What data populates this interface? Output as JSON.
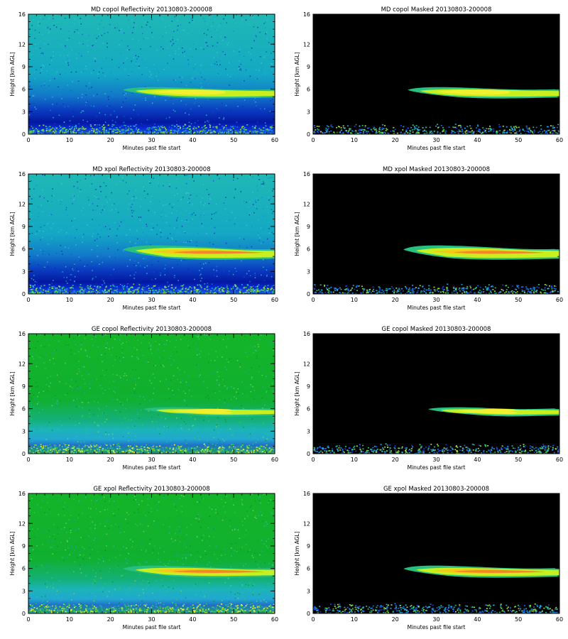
{
  "figure": {
    "xlabel": "Minutes past file start",
    "ylabel": "Height [km AGL]"
  },
  "chart_data": [
    {
      "type": "heatmap",
      "title": "MD copol Reflectivity 20130803-200008",
      "xlabel": "Minutes past file start",
      "ylabel": "Height [km AGL]",
      "xlim": [
        0,
        60
      ],
      "ylim": [
        0,
        16
      ],
      "xticks": [
        0,
        10,
        20,
        30,
        40,
        50,
        60
      ],
      "yticks": [
        0,
        3,
        6,
        9,
        12,
        16
      ],
      "background": "cyan-noise",
      "masked": false,
      "cloud_layer": {
        "start_min": 23,
        "end_min": 60,
        "base_km": 4.8,
        "top_km": 6.3,
        "intensity": "moderate"
      }
    },
    {
      "type": "heatmap",
      "title": "MD copol Masked 20130803-200008",
      "xlabel": "Minutes past file start",
      "ylabel": "Height [km AGL]",
      "xlim": [
        0,
        60
      ],
      "ylim": [
        0,
        16
      ],
      "xticks": [
        0,
        10,
        20,
        30,
        40,
        50,
        60
      ],
      "yticks": [
        0,
        3,
        6,
        9,
        12,
        16
      ],
      "background": "black",
      "masked": true,
      "cloud_layer": {
        "start_min": 23,
        "end_min": 60,
        "base_km": 4.8,
        "top_km": 6.3,
        "intensity": "moderate"
      }
    },
    {
      "type": "heatmap",
      "title": "MD xpol Reflectivity 20130803-200008",
      "xlabel": "Minutes past file start",
      "ylabel": "Height [km AGL]",
      "xlim": [
        0,
        60
      ],
      "ylim": [
        0,
        16
      ],
      "xticks": [
        0,
        10,
        20,
        30,
        40,
        50,
        60
      ],
      "yticks": [
        0,
        3,
        6,
        9,
        12,
        16
      ],
      "background": "cyan-noise",
      "masked": false,
      "cloud_layer": {
        "start_min": 23,
        "end_min": 60,
        "base_km": 4.6,
        "top_km": 6.5,
        "intensity": "strong"
      }
    },
    {
      "type": "heatmap",
      "title": "MD xpol Masked 20130803-200008",
      "xlabel": "Minutes past file start",
      "ylabel": "Height [km AGL]",
      "xlim": [
        0,
        60
      ],
      "ylim": [
        0,
        16
      ],
      "xticks": [
        0,
        10,
        20,
        30,
        40,
        50,
        60
      ],
      "yticks": [
        0,
        3,
        6,
        9,
        12,
        16
      ],
      "background": "black",
      "masked": true,
      "cloud_layer": {
        "start_min": 22,
        "end_min": 60,
        "base_km": 4.6,
        "top_km": 6.5,
        "intensity": "strong"
      }
    },
    {
      "type": "heatmap",
      "title": "GE copol Reflectivity 20130803-200008",
      "xlabel": "Minutes past file start",
      "ylabel": "Height [km AGL]",
      "xlim": [
        0,
        60
      ],
      "ylim": [
        0,
        16
      ],
      "xticks": [
        0,
        10,
        20,
        30,
        40,
        50,
        60
      ],
      "yticks": [
        0,
        3,
        6,
        9,
        12,
        16
      ],
      "background": "green-noise",
      "masked": false,
      "cloud_layer": {
        "start_min": 28,
        "end_min": 60,
        "base_km": 5.0,
        "top_km": 6.2,
        "intensity": "moderate"
      }
    },
    {
      "type": "heatmap",
      "title": "GE copol Masked 20130803-200008",
      "xlabel": "Minutes past file start",
      "ylabel": "Height [km AGL]",
      "xlim": [
        0,
        60
      ],
      "ylim": [
        0,
        16
      ],
      "xticks": [
        0,
        10,
        20,
        30,
        40,
        50,
        60
      ],
      "yticks": [
        0,
        3,
        6,
        9,
        12,
        16
      ],
      "background": "black",
      "masked": true,
      "cloud_layer": {
        "start_min": 28,
        "end_min": 60,
        "base_km": 5.0,
        "top_km": 6.2,
        "intensity": "moderate"
      }
    },
    {
      "type": "heatmap",
      "title": "GE xpol Reflectivity 20130803-200008",
      "xlabel": "Minutes past file start",
      "ylabel": "Height [km AGL]",
      "xlim": [
        0,
        60
      ],
      "ylim": [
        0,
        16
      ],
      "xticks": [
        0,
        10,
        20,
        30,
        40,
        50,
        60
      ],
      "yticks": [
        0,
        3,
        6,
        9,
        12,
        16
      ],
      "background": "green-noise",
      "masked": false,
      "cloud_layer": {
        "start_min": 23,
        "end_min": 60,
        "base_km": 4.8,
        "top_km": 6.4,
        "intensity": "strong"
      }
    },
    {
      "type": "heatmap",
      "title": "GE xpol Masked 20130803-200008",
      "xlabel": "Minutes past file start",
      "ylabel": "Height [km AGL]",
      "xlim": [
        0,
        60
      ],
      "ylim": [
        0,
        16
      ],
      "xticks": [
        0,
        10,
        20,
        30,
        40,
        50,
        60
      ],
      "yticks": [
        0,
        3,
        6,
        9,
        12,
        16
      ],
      "background": "black",
      "masked": true,
      "cloud_layer": {
        "start_min": 22,
        "end_min": 60,
        "base_km": 4.8,
        "top_km": 6.4,
        "intensity": "strong"
      }
    }
  ]
}
